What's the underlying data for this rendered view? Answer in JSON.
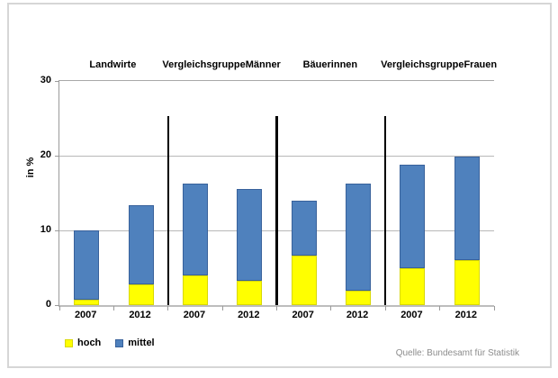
{
  "chart_data": {
    "type": "bar",
    "subtype": "stacked",
    "title": "",
    "ylabel": "in %",
    "xlabel": "",
    "ylim": [
      0,
      30
    ],
    "yticks": [
      0,
      10,
      20,
      30
    ],
    "grid": true,
    "groups": [
      {
        "label": "Landwirte",
        "lines": [
          "Landwirte"
        ]
      },
      {
        "label": "Vergleichsgruppe Männer",
        "lines": [
          "Vergleichsgruppe",
          "Männer"
        ]
      },
      {
        "label": "Bäuerinnen",
        "lines": [
          "Bäuerinnen"
        ]
      },
      {
        "label": "Vergleichsgruppe Frauen",
        "lines": [
          "Vergleichsgruppe",
          "Frauen"
        ]
      }
    ],
    "categories": [
      "2007",
      "2012",
      "2007",
      "2012",
      "2007",
      "2012",
      "2007",
      "2012"
    ],
    "series": [
      {
        "name": "hoch",
        "color": "#ffff00",
        "values": [
          0.7,
          2.8,
          4.0,
          3.3,
          6.6,
          1.9,
          4.9,
          6.0
        ]
      },
      {
        "name": "mittel",
        "color": "#4f81bd",
        "values": [
          9.3,
          10.6,
          12.3,
          12.2,
          7.4,
          14.4,
          13.9,
          13.9
        ]
      }
    ],
    "totals": [
      10.0,
      13.4,
      16.3,
      15.5,
      14.0,
      16.3,
      18.8,
      19.9
    ],
    "legend": [
      "hoch",
      "mittel"
    ],
    "legend_position": "bottom-left",
    "source": "Quelle: Bundesamt für Statistik"
  },
  "colors": {
    "hoch_fill": "#ffff00",
    "hoch_border": "#d8d800",
    "mittel_fill": "#4f81bd",
    "mittel_border": "#38619b",
    "gridline": "#b8b8b8",
    "divider": "#000000",
    "frame_border": "#d6d6d6",
    "source_text": "#8c8c8c"
  }
}
